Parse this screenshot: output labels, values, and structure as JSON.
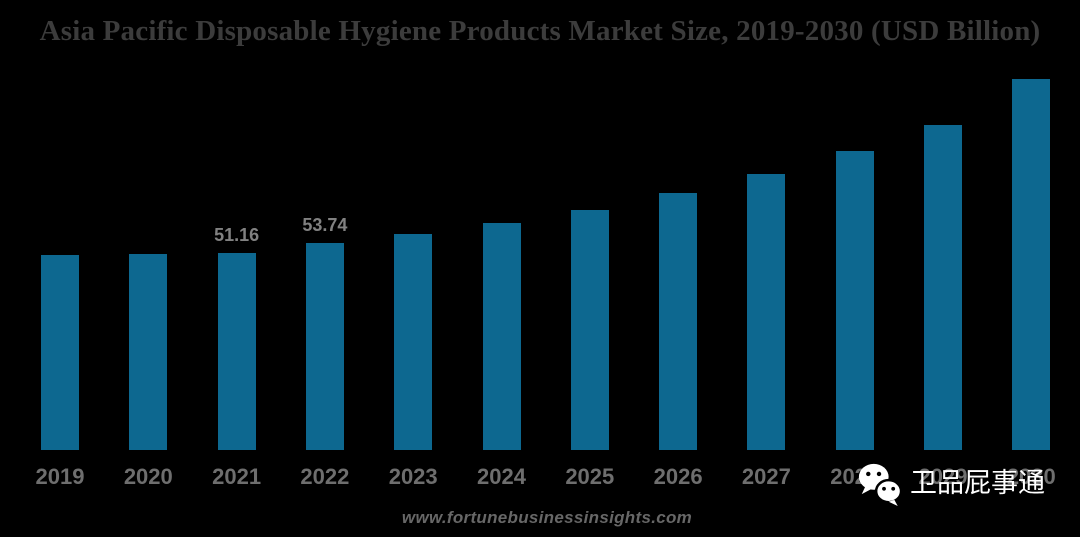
{
  "title": "Asia Pacific Disposable Hygiene Products Market Size, 2019-2030 (USD Billion)",
  "watermark": "www.fortunebusinessinsights.com",
  "overlay": {
    "icon": "wechat-icon",
    "account_name": "卫品屁事通"
  },
  "colors": {
    "background": "#000000",
    "bar": "#0d6890",
    "title_text": "#3c3c3c",
    "axis_label": "#6e6e6e",
    "value_label": "#818181",
    "watermark": "#676767",
    "overlay_text": "#ffffff"
  },
  "chart_data": {
    "type": "bar",
    "title": "Asia Pacific Disposable Hygiene Products Market Size, 2019-2030 (USD Billion)",
    "unit": "USD Billion",
    "categories": [
      "2019",
      "2020",
      "2021",
      "2022",
      "2023",
      "2024",
      "2025",
      "2026",
      "2027",
      "2028",
      "2029",
      "2030"
    ],
    "values": [
      50.8,
      51.0,
      51.16,
      53.74,
      56.0,
      58.9,
      62.4,
      66.7,
      71.6,
      77.7,
      84.5,
      96.3
    ],
    "data_labels": [
      "",
      "",
      "51.16",
      "53.74",
      "",
      "",
      "",
      "",
      "",
      "",
      "",
      ""
    ],
    "xlabel": "",
    "ylabel": "",
    "ylim": [
      0,
      100
    ],
    "grid": false,
    "legend": false,
    "y_axis_visible": false,
    "bar_color": "#0d6890"
  }
}
